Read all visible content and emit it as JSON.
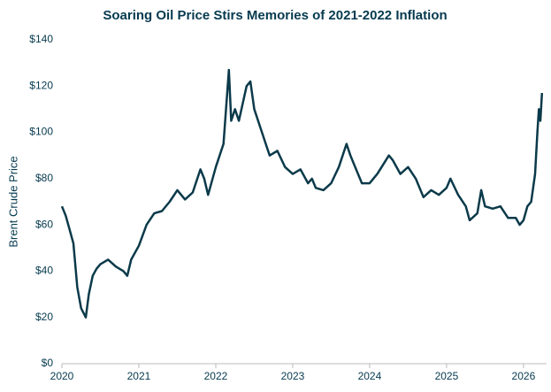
{
  "chart_data": {
    "type": "line",
    "title": "Soaring Oil Price Stirs Memories of 2021-2022 Inflation",
    "y_label": "Brent Crude Price",
    "x": [
      2020.0,
      2020.05,
      2020.1,
      2020.15,
      2020.2,
      2020.25,
      2020.31,
      2020.35,
      2020.4,
      2020.45,
      2020.5,
      2020.6,
      2020.7,
      2020.8,
      2020.85,
      2020.9,
      2021.0,
      2021.1,
      2021.2,
      2021.3,
      2021.4,
      2021.5,
      2021.6,
      2021.7,
      2021.8,
      2021.85,
      2021.9,
      2022.0,
      2022.1,
      2022.17,
      2022.2,
      2022.25,
      2022.3,
      2022.4,
      2022.45,
      2022.5,
      2022.6,
      2022.65,
      2022.7,
      2022.8,
      2022.9,
      2023.0,
      2023.1,
      2023.2,
      2023.25,
      2023.3,
      2023.4,
      2023.5,
      2023.6,
      2023.7,
      2023.75,
      2023.8,
      2023.9,
      2024.0,
      2024.1,
      2024.25,
      2024.3,
      2024.4,
      2024.5,
      2024.6,
      2024.7,
      2024.8,
      2024.9,
      2025.0,
      2025.05,
      2025.15,
      2025.25,
      2025.3,
      2025.4,
      2025.45,
      2025.5,
      2025.6,
      2025.7,
      2025.8,
      2025.9,
      2025.95,
      2026.0,
      2026.05,
      2026.1,
      2026.15,
      2026.18,
      2026.2,
      2026.22,
      2026.24
    ],
    "series": [
      {
        "name": "Brent Crude Price",
        "color": "#0b3a4a",
        "values": [
          68,
          64,
          58,
          52,
          33,
          24,
          20,
          30,
          38,
          41,
          43,
          45,
          42,
          40,
          38,
          45,
          51,
          60,
          65,
          66,
          70,
          75,
          71,
          74,
          84,
          80,
          73,
          85,
          95,
          127,
          105,
          110,
          105,
          120,
          122,
          110,
          100,
          95,
          90,
          92,
          85,
          82,
          84,
          78,
          80,
          76,
          75,
          78,
          85,
          95,
          90,
          86,
          78,
          78,
          82,
          90,
          88,
          82,
          85,
          80,
          72,
          75,
          73,
          76,
          80,
          73,
          68,
          62,
          65,
          75,
          68,
          67,
          68,
          63,
          63,
          60,
          62,
          68,
          70,
          82,
          100,
          110,
          105,
          117
        ]
      }
    ],
    "xlim": [
      2020,
      2026.3
    ],
    "xticks": [
      2020,
      2021,
      2022,
      2023,
      2024,
      2025,
      2026
    ],
    "ylim": [
      0,
      140
    ],
    "yticks": [
      {
        "value": 0,
        "label": "$0"
      },
      {
        "value": 20,
        "label": "$20"
      },
      {
        "value": 40,
        "label": "$40"
      },
      {
        "value": 60,
        "label": "$60"
      },
      {
        "value": 80,
        "label": "$80"
      },
      {
        "value": 100,
        "label": "$100"
      },
      {
        "value": 120,
        "label": "$120"
      },
      {
        "value": 140,
        "label": "$140"
      }
    ],
    "grid": false
  }
}
